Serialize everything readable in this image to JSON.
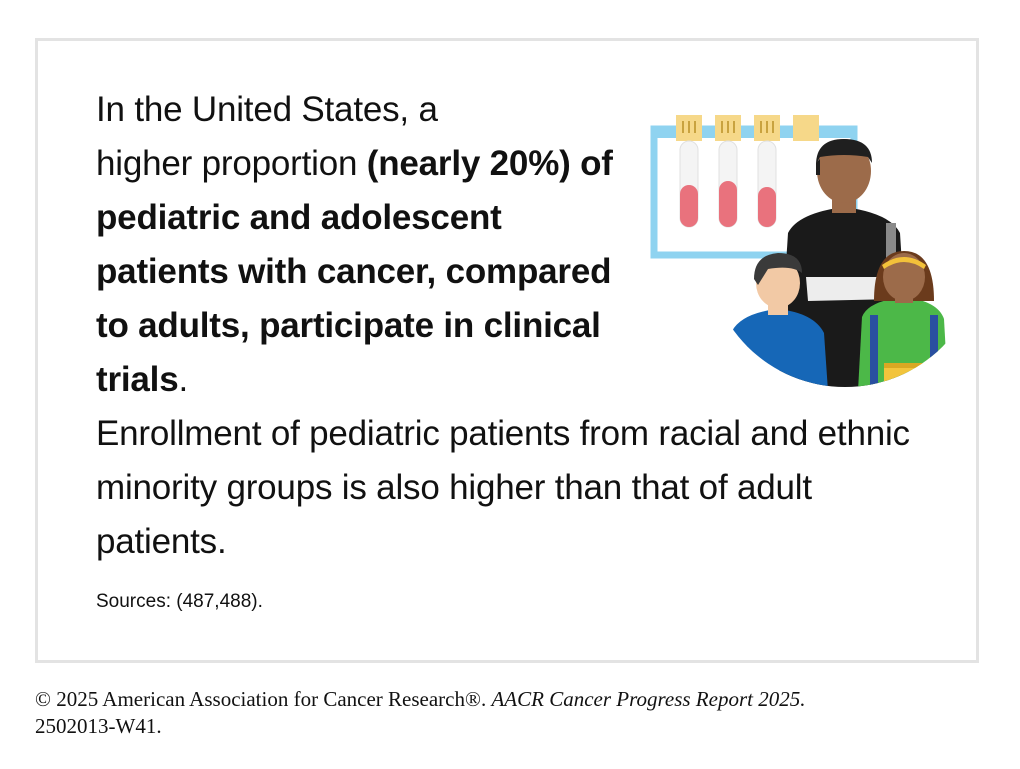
{
  "infographic": {
    "lead_line_1": "In the United States, a",
    "lead_line_2_plain": "higher proportion ",
    "lead_line_2_bold": "(nearly",
    "lead_bold_rest": "20%) of pediatric and adolescent patients with cancer, compared to adults, participate in clinical trials",
    "lead_end": ".",
    "body": "Enrollment of pediatric patients from racial and ethnic minority groups is also higher than that of adult patients.",
    "sources": "Sources: (487,488)."
  },
  "illustration": {
    "icon": "family-clinical-trial-illustration",
    "colors": {
      "rack": "#8fd3f0",
      "tube_caps": "#f6d889",
      "blood": "#e9727d",
      "man_skin": "#9c6b4a",
      "man_shirt": "#1a1a1a",
      "boy_shirt": "#1667b7",
      "girl_shirt": "#4cb848",
      "girl_headband": "#f3c13a",
      "book": "#f2c43c"
    }
  },
  "footer": {
    "copyright": "© 2025 American Association for Cancer Research®. ",
    "report": "AACR Cancer Progress Report 2025.",
    "code": "2502013-W41."
  }
}
